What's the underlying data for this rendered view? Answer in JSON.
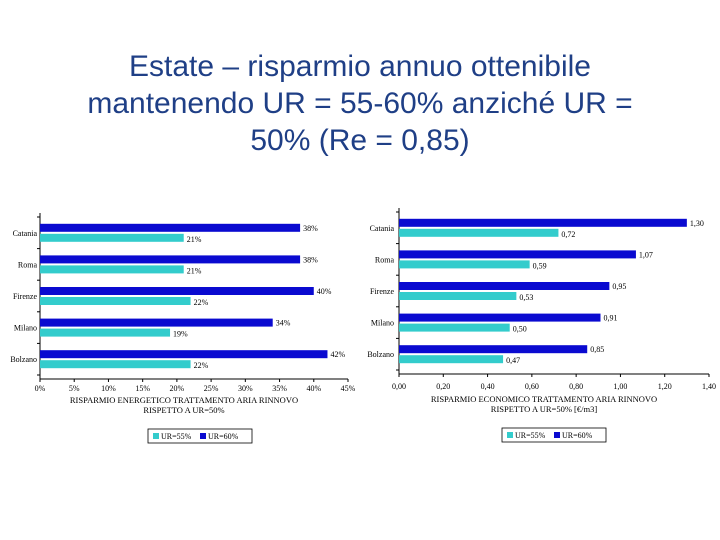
{
  "title": {
    "line1": "Estate – risparmio annuo ottenibile",
    "line2": "mantenendo UR = 55-60% anziché UR =",
    "line3": "50% (Re = 0,85)"
  },
  "colors": {
    "series1": "#33cccc",
    "series2": "#0a0ad0"
  },
  "chart_data": [
    {
      "type": "bar",
      "orientation": "horizontal",
      "categories": [
        "Catania",
        "Roma",
        "Firenze",
        "Milano",
        "Bolzano"
      ],
      "series": [
        {
          "name": "UR=55%",
          "values": [
            21,
            21,
            22,
            19,
            22
          ],
          "labels": [
            "21%",
            "21%",
            "22%",
            "19%",
            "22%"
          ]
        },
        {
          "name": "UR=60%",
          "values": [
            38,
            38,
            40,
            34,
            42
          ],
          "labels": [
            "38%",
            "38%",
            "40%",
            "34%",
            "42%"
          ]
        }
      ],
      "xlim": [
        0,
        45
      ],
      "xticks": [
        "0%",
        "5%",
        "10%",
        "15%",
        "20%",
        "25%",
        "30%",
        "35%",
        "40%",
        "45%"
      ],
      "xlabel_lines": [
        "RISPARMIO ENERGETICO TRATTAMENTO ARIA RINNOVO",
        "RISPETTO A UR=50%"
      ],
      "legend_position": "bottom"
    },
    {
      "type": "bar",
      "orientation": "horizontal",
      "categories": [
        "Catania",
        "Roma",
        "Firenze",
        "Milano",
        "Bolzano"
      ],
      "series": [
        {
          "name": "UR=55%",
          "values": [
            0.72,
            0.59,
            0.53,
            0.5,
            0.47
          ],
          "labels": [
            "0,72",
            "0,59",
            "0,53",
            "0,50",
            "0,47"
          ]
        },
        {
          "name": "UR=60%",
          "values": [
            1.3,
            1.07,
            0.95,
            0.91,
            0.85
          ],
          "labels": [
            "1,30",
            "1,07",
            "0,95",
            "0,91",
            "0,85"
          ]
        }
      ],
      "xlim": [
        0,
        1.4
      ],
      "xticks": [
        "0,00",
        "0,20",
        "0,40",
        "0,60",
        "0,80",
        "1,00",
        "1,20",
        "1,40"
      ],
      "xlabel_lines": [
        "RISPARMIO ECONOMICO TRATTAMENTO ARIA RINNOVO",
        "RISPETTO A UR=50% [€/m3]"
      ],
      "legend_position": "bottom"
    }
  ]
}
